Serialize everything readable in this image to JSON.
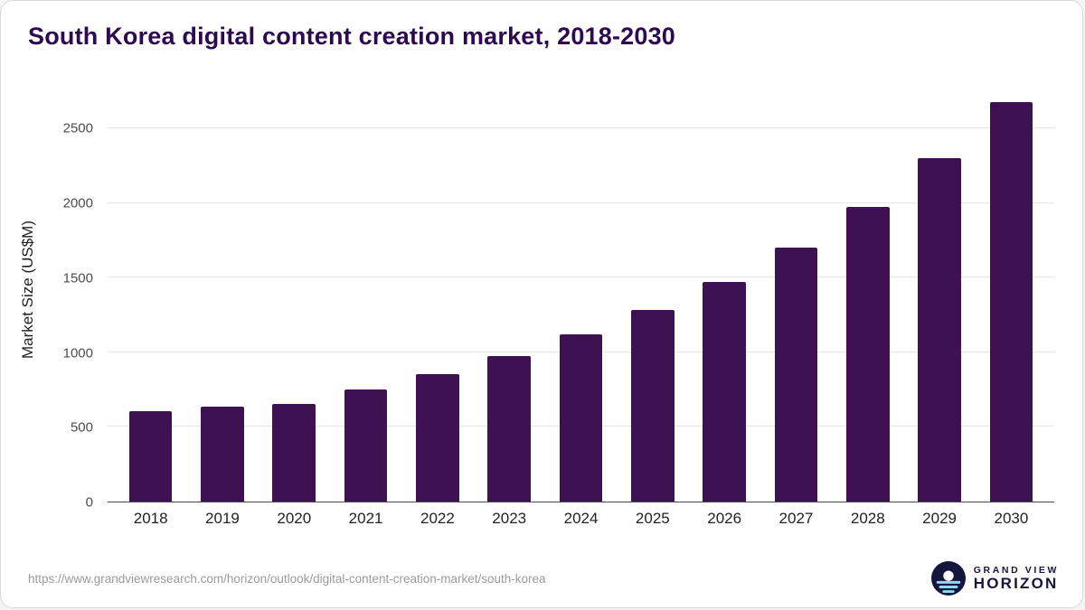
{
  "chart": {
    "bar_color": "#3e1152",
    "title_color": "#2d0a50",
    "grid_color": "#e6e6e6"
  },
  "chart_data": {
    "type": "bar",
    "title": "South Korea digital content creation market, 2018-2030",
    "xlabel": "",
    "ylabel": "Market Size (US$M)",
    "categories": [
      "2018",
      "2019",
      "2020",
      "2021",
      "2022",
      "2023",
      "2024",
      "2025",
      "2026",
      "2027",
      "2028",
      "2029",
      "2030"
    ],
    "values": [
      605,
      635,
      655,
      750,
      855,
      975,
      1120,
      1285,
      1475,
      1705,
      1975,
      2300,
      2680
    ],
    "ylim": [
      0,
      2720
    ],
    "yticks": [
      0,
      500,
      1000,
      1500,
      2000,
      2500
    ],
    "grid": "horizontal",
    "legend": "none"
  },
  "footer": {
    "source_url": "https://www.grandviewresearch.com/horizon/outlook/digital-content-creation-market/south-korea",
    "logo": {
      "line1": "GRAND VIEW",
      "line2": "HORIZON"
    }
  }
}
